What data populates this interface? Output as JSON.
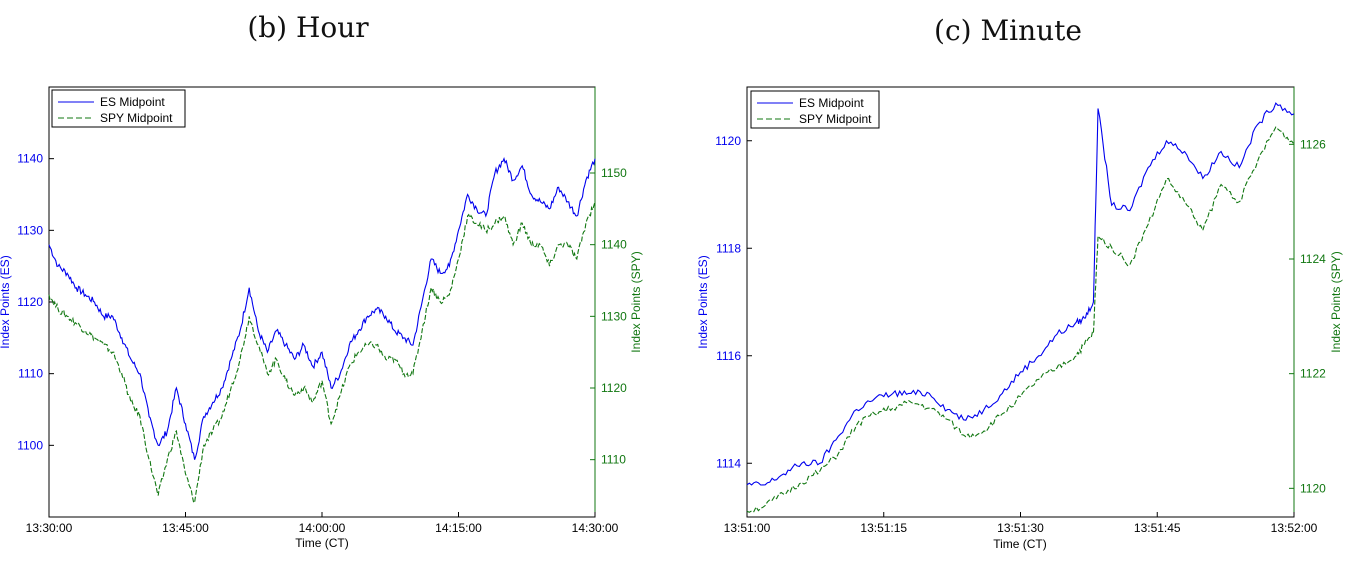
{
  "colors": {
    "es": "#0000ee",
    "spy": "#117711",
    "axis": "#000000"
  },
  "panels": [
    {
      "subtitle": "(b) Hour",
      "legend": [
        "ES Midpoint",
        "SPY Midpoint"
      ],
      "xlabel": "Time (CT)",
      "ylabel_left": "Index Points (ES)",
      "ylabel_right": "Index Points (SPY)",
      "xticks": [
        "13:30:00",
        "13:45:00",
        "14:00:00",
        "14:15:00",
        "14:30:00"
      ],
      "yticks_left": [
        "1100",
        "1110",
        "1120",
        "1130",
        "1140"
      ],
      "yticks_right": [
        "1110",
        "1120",
        "1130",
        "1140",
        "1150"
      ]
    },
    {
      "subtitle": "(c) Minute",
      "legend": [
        "ES Midpoint",
        "SPY Midpoint"
      ],
      "xlabel": "Time (CT)",
      "ylabel_left": "Index Points (ES)",
      "ylabel_right": "Index Points (SPY)",
      "xticks": [
        "13:51:00",
        "13:51:15",
        "13:51:30",
        "13:51:45",
        "13:52:00"
      ],
      "yticks_left": [
        "1114",
        "1116",
        "1118",
        "1120"
      ],
      "yticks_right": [
        "1120",
        "1122",
        "1124",
        "1126"
      ]
    }
  ],
  "chart_data": [
    {
      "type": "line",
      "title": "(b) Hour",
      "xlabel": "Time (CT)",
      "ylabel": "Index Points (ES)",
      "ylabel_right": "Index Points (SPY)",
      "x_unit": "minutes since 13:30:00",
      "xlim": [
        0,
        60
      ],
      "ylim": [
        1090,
        1150
      ],
      "ylim_right": [
        1102,
        1162
      ],
      "legend_position": "top-left",
      "grid": false,
      "series": [
        {
          "name": "ES Midpoint",
          "axis": "left",
          "x": [
            0,
            1,
            2,
            3,
            4,
            5,
            6,
            7,
            8,
            9,
            10,
            11,
            12,
            13,
            14,
            15,
            16,
            17,
            18,
            19,
            20,
            21,
            22,
            23,
            24,
            25,
            26,
            27,
            28,
            29,
            30,
            31,
            32,
            33,
            34,
            35,
            36,
            37,
            38,
            39,
            40,
            41,
            42,
            43,
            44,
            45,
            46,
            47,
            48,
            49,
            50,
            51,
            52,
            53,
            54,
            55,
            56,
            57,
            58,
            59,
            60
          ],
          "y": [
            1128,
            1125,
            1124,
            1122,
            1121,
            1120,
            1118,
            1118,
            1115,
            1112,
            1110,
            1104,
            1100,
            1102,
            1108,
            1103,
            1098,
            1104,
            1106,
            1108,
            1112,
            1116,
            1122,
            1116,
            1113,
            1116,
            1114,
            1112,
            1114,
            1111,
            1113,
            1108,
            1110,
            1114,
            1116,
            1118,
            1119,
            1118,
            1116,
            1115,
            1114,
            1120,
            1126,
            1124,
            1125,
            1130,
            1135,
            1133,
            1132,
            1138,
            1140,
            1137,
            1139,
            1135,
            1134,
            1133,
            1136,
            1134,
            1132,
            1137,
            1140
          ]
        },
        {
          "name": "SPY Midpoint",
          "axis": "right",
          "x": [
            0,
            1,
            2,
            3,
            4,
            5,
            6,
            7,
            8,
            9,
            10,
            11,
            12,
            13,
            14,
            15,
            16,
            17,
            18,
            19,
            20,
            21,
            22,
            23,
            24,
            25,
            26,
            27,
            28,
            29,
            30,
            31,
            32,
            33,
            34,
            35,
            36,
            37,
            38,
            39,
            40,
            41,
            42,
            43,
            44,
            45,
            46,
            47,
            48,
            49,
            50,
            51,
            52,
            53,
            54,
            55,
            56,
            57,
            58,
            59,
            60
          ],
          "y": [
            1133,
            1131,
            1130,
            1129,
            1128,
            1127,
            1126,
            1125,
            1122,
            1118,
            1116,
            1110,
            1105,
            1110,
            1114,
            1108,
            1104,
            1112,
            1114,
            1116,
            1120,
            1124,
            1130,
            1126,
            1122,
            1124,
            1121,
            1119,
            1120,
            1118,
            1121,
            1115,
            1119,
            1123,
            1125,
            1126,
            1126,
            1124,
            1124,
            1122,
            1122,
            1128,
            1134,
            1132,
            1133,
            1138,
            1144,
            1143,
            1142,
            1143,
            1144,
            1140,
            1143,
            1140,
            1140,
            1137,
            1140,
            1140,
            1138,
            1143,
            1146
          ]
        }
      ]
    },
    {
      "type": "line",
      "title": "(c) Minute",
      "xlabel": "Time (CT)",
      "ylabel": "Index Points (ES)",
      "ylabel_right": "Index Points (SPY)",
      "x_unit": "seconds since 13:51:00",
      "xlim": [
        0,
        60
      ],
      "ylim": [
        1113,
        1121
      ],
      "ylim_right": [
        1119.5,
        1127
      ],
      "legend_position": "top-left",
      "grid": false,
      "series": [
        {
          "name": "ES Midpoint",
          "axis": "left",
          "x": [
            0,
            2,
            4,
            6,
            8,
            10,
            12,
            14,
            16,
            18,
            20,
            22,
            24,
            26,
            28,
            30,
            32,
            34,
            36,
            37,
            38,
            38.5,
            40,
            42,
            44,
            46,
            48,
            50,
            52,
            54,
            56,
            58,
            60
          ],
          "y": [
            1113.6,
            1113.6,
            1113.8,
            1114,
            1114,
            1114.5,
            1115,
            1115.2,
            1115.3,
            1115.3,
            1115.3,
            1115,
            1114.8,
            1115,
            1115.3,
            1115.7,
            1116,
            1116.4,
            1116.6,
            1116.7,
            1117,
            1120.6,
            1118.8,
            1118.7,
            1119.5,
            1120,
            1119.8,
            1119.3,
            1119.8,
            1119.5,
            1120.3,
            1120.7,
            1120.5
          ]
        },
        {
          "name": "SPY Midpoint",
          "axis": "right",
          "x": [
            0,
            2,
            4,
            6,
            8,
            10,
            12,
            14,
            16,
            18,
            20,
            22,
            24,
            26,
            28,
            30,
            32,
            34,
            36,
            37,
            38,
            38.5,
            40,
            42,
            44,
            46,
            48,
            50,
            52,
            54,
            56,
            58,
            60
          ],
          "y": [
            1119.6,
            1119.7,
            1119.9,
            1120.1,
            1120.3,
            1120.6,
            1121.1,
            1121.3,
            1121.4,
            1121.5,
            1121.4,
            1121.2,
            1120.9,
            1121,
            1121.3,
            1121.6,
            1121.9,
            1122.1,
            1122.3,
            1122.5,
            1122.7,
            1124.4,
            1124.2,
            1123.9,
            1124.6,
            1125.4,
            1125,
            1124.5,
            1125.3,
            1125,
            1125.7,
            1126.3,
            1126
          ]
        }
      ]
    }
  ]
}
